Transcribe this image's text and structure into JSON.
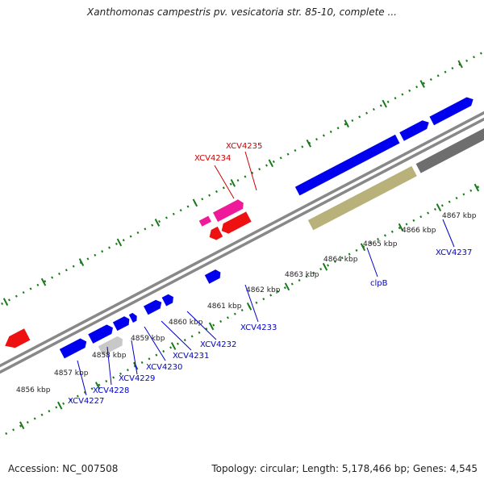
{
  "title": "Xanthomonas campestris pv. vesicatoria str. 85-10, complete ...",
  "footer": {
    "accession": "Accession: NC_007508",
    "summary": "Topology: circular; Length: 5,178,466 bp; Genes: 4,545"
  },
  "colors": {
    "forward_gene": "#0000ee",
    "reverse_gene": "#ff0000",
    "highlight_gene": "#ee1a9a",
    "clpB_gene": "#b8b27a",
    "grey_gene": "#c8c8c8",
    "dark_grey_gene": "#6e6e6e",
    "backbone": "#777777",
    "tick_green": "#1a7a1a",
    "forward_label": "#0000cc",
    "reverse_label": "#cc0000"
  },
  "scale_labels": [
    "4856 kbp",
    "4857 kbp",
    "4858 kbp",
    "4859 kbp",
    "4860 kbp",
    "4861 kbp",
    "4862 kbp",
    "4863 kbp",
    "4864 kbp",
    "4865 kbp",
    "4866 kbp",
    "4867 kbp"
  ],
  "gene_labels_forward": [
    "XCV4227",
    "XCV4228",
    "XCV4229",
    "XCV4230",
    "XCV4231",
    "XCV4232",
    "XCV4233",
    "clpB",
    "XCV4237"
  ],
  "gene_labels_reverse": [
    "XCV4234",
    "XCV4235"
  ]
}
